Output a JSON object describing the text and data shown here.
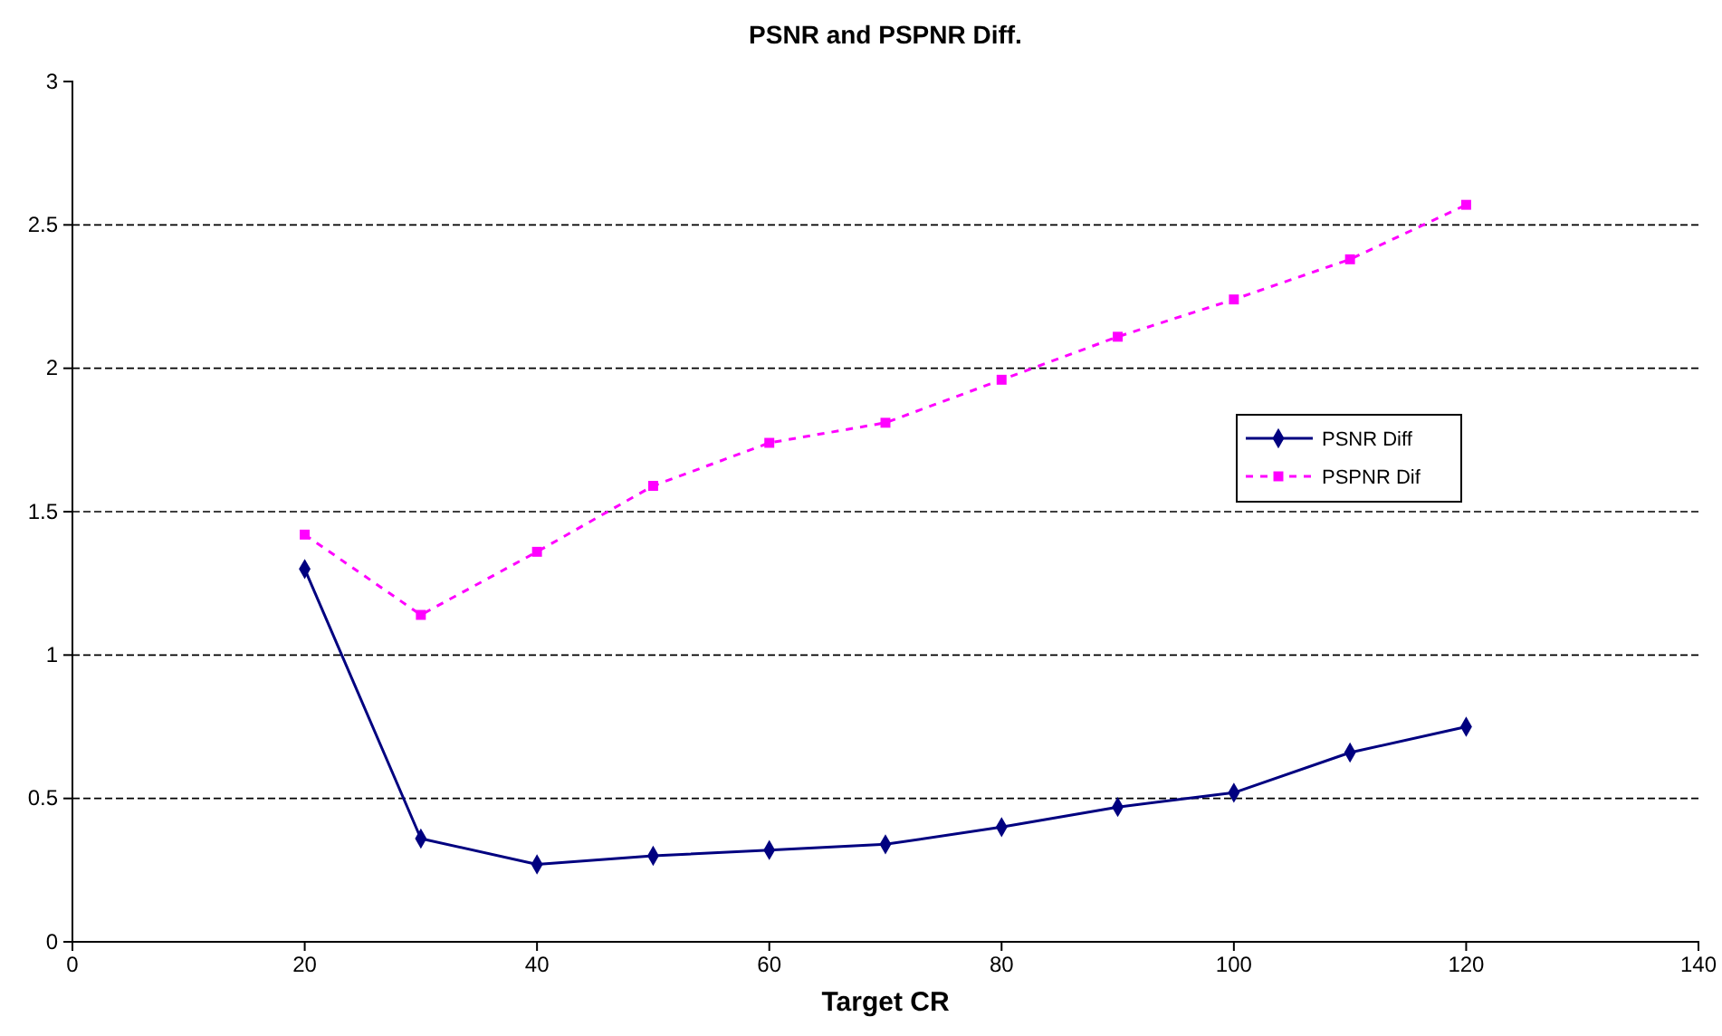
{
  "chart_data": {
    "type": "line",
    "title": "PSNR and PSPNR Diff.",
    "xlabel": "Target CR",
    "x": [
      20,
      30,
      40,
      50,
      60,
      70,
      80,
      90,
      100,
      110,
      120
    ],
    "series": [
      {
        "name": "PSNR Diff",
        "color": "#000080",
        "marker": "diamond",
        "line_style": "solid",
        "values": [
          1.3,
          0.36,
          0.27,
          0.3,
          0.32,
          0.34,
          0.4,
          0.47,
          0.52,
          0.66,
          0.75
        ]
      },
      {
        "name": "PSPNR Dif",
        "color": "#ff00ff",
        "marker": "square",
        "line_style": "dashed",
        "values": [
          1.42,
          1.14,
          1.36,
          1.59,
          1.74,
          1.81,
          1.96,
          2.11,
          2.24,
          2.38,
          2.57
        ]
      }
    ],
    "xlim": [
      0,
      140
    ],
    "xticks": [
      0,
      20,
      40,
      60,
      80,
      100,
      120,
      140
    ],
    "ylim": [
      0,
      3
    ],
    "yticks": [
      0,
      0.5,
      1,
      1.5,
      2,
      2.5,
      3
    ],
    "grid": "y",
    "legend": "right"
  }
}
